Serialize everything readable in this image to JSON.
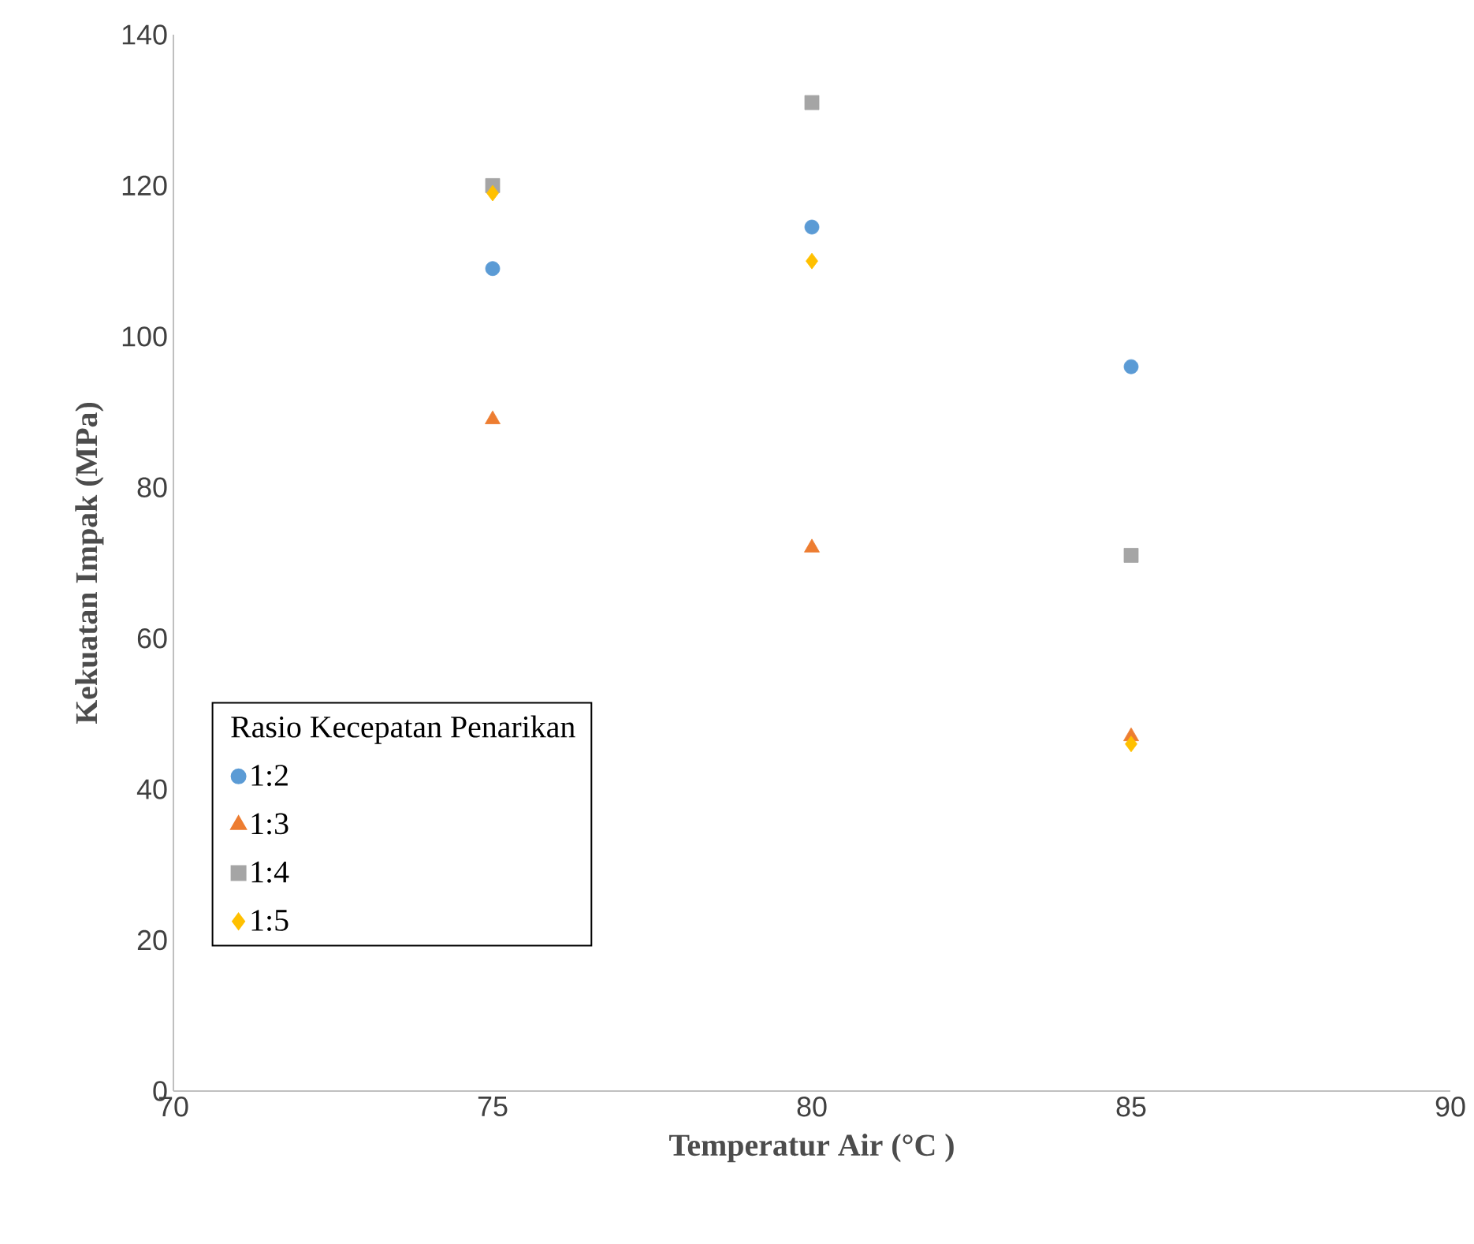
{
  "chart_data": {
    "type": "scatter",
    "xlabel": "Temperatur  Air (°C )",
    "ylabel": "Kekuatan  Impak  (MPa)",
    "legend_title": "Rasio Kecepatan Penarikan",
    "legend": "left",
    "xlim": [
      70,
      90
    ],
    "xticks": [
      70,
      75,
      80,
      85,
      90
    ],
    "ylim": [
      0,
      140
    ],
    "yticks": [
      0,
      20,
      40,
      60,
      80,
      100,
      120,
      140
    ],
    "series": [
      {
        "name": "1:2",
        "color": "#5b9bd5",
        "marker": "circle",
        "x": [
          75,
          80,
          85
        ],
        "values": [
          109,
          114.5,
          96
        ]
      },
      {
        "name": "1:3",
        "color": "#ed7d31",
        "marker": "triangle",
        "x": [
          75,
          80,
          85
        ],
        "values": [
          89,
          72,
          47
        ]
      },
      {
        "name": "1:4",
        "color": "#a5a5a5",
        "marker": "square",
        "x": [
          75,
          80,
          85
        ],
        "values": [
          120,
          131,
          71
        ]
      },
      {
        "name": "1:5",
        "color": "#ffc000",
        "marker": "diamond",
        "x": [
          75,
          80,
          85
        ],
        "values": [
          119,
          110,
          46
        ]
      }
    ]
  }
}
